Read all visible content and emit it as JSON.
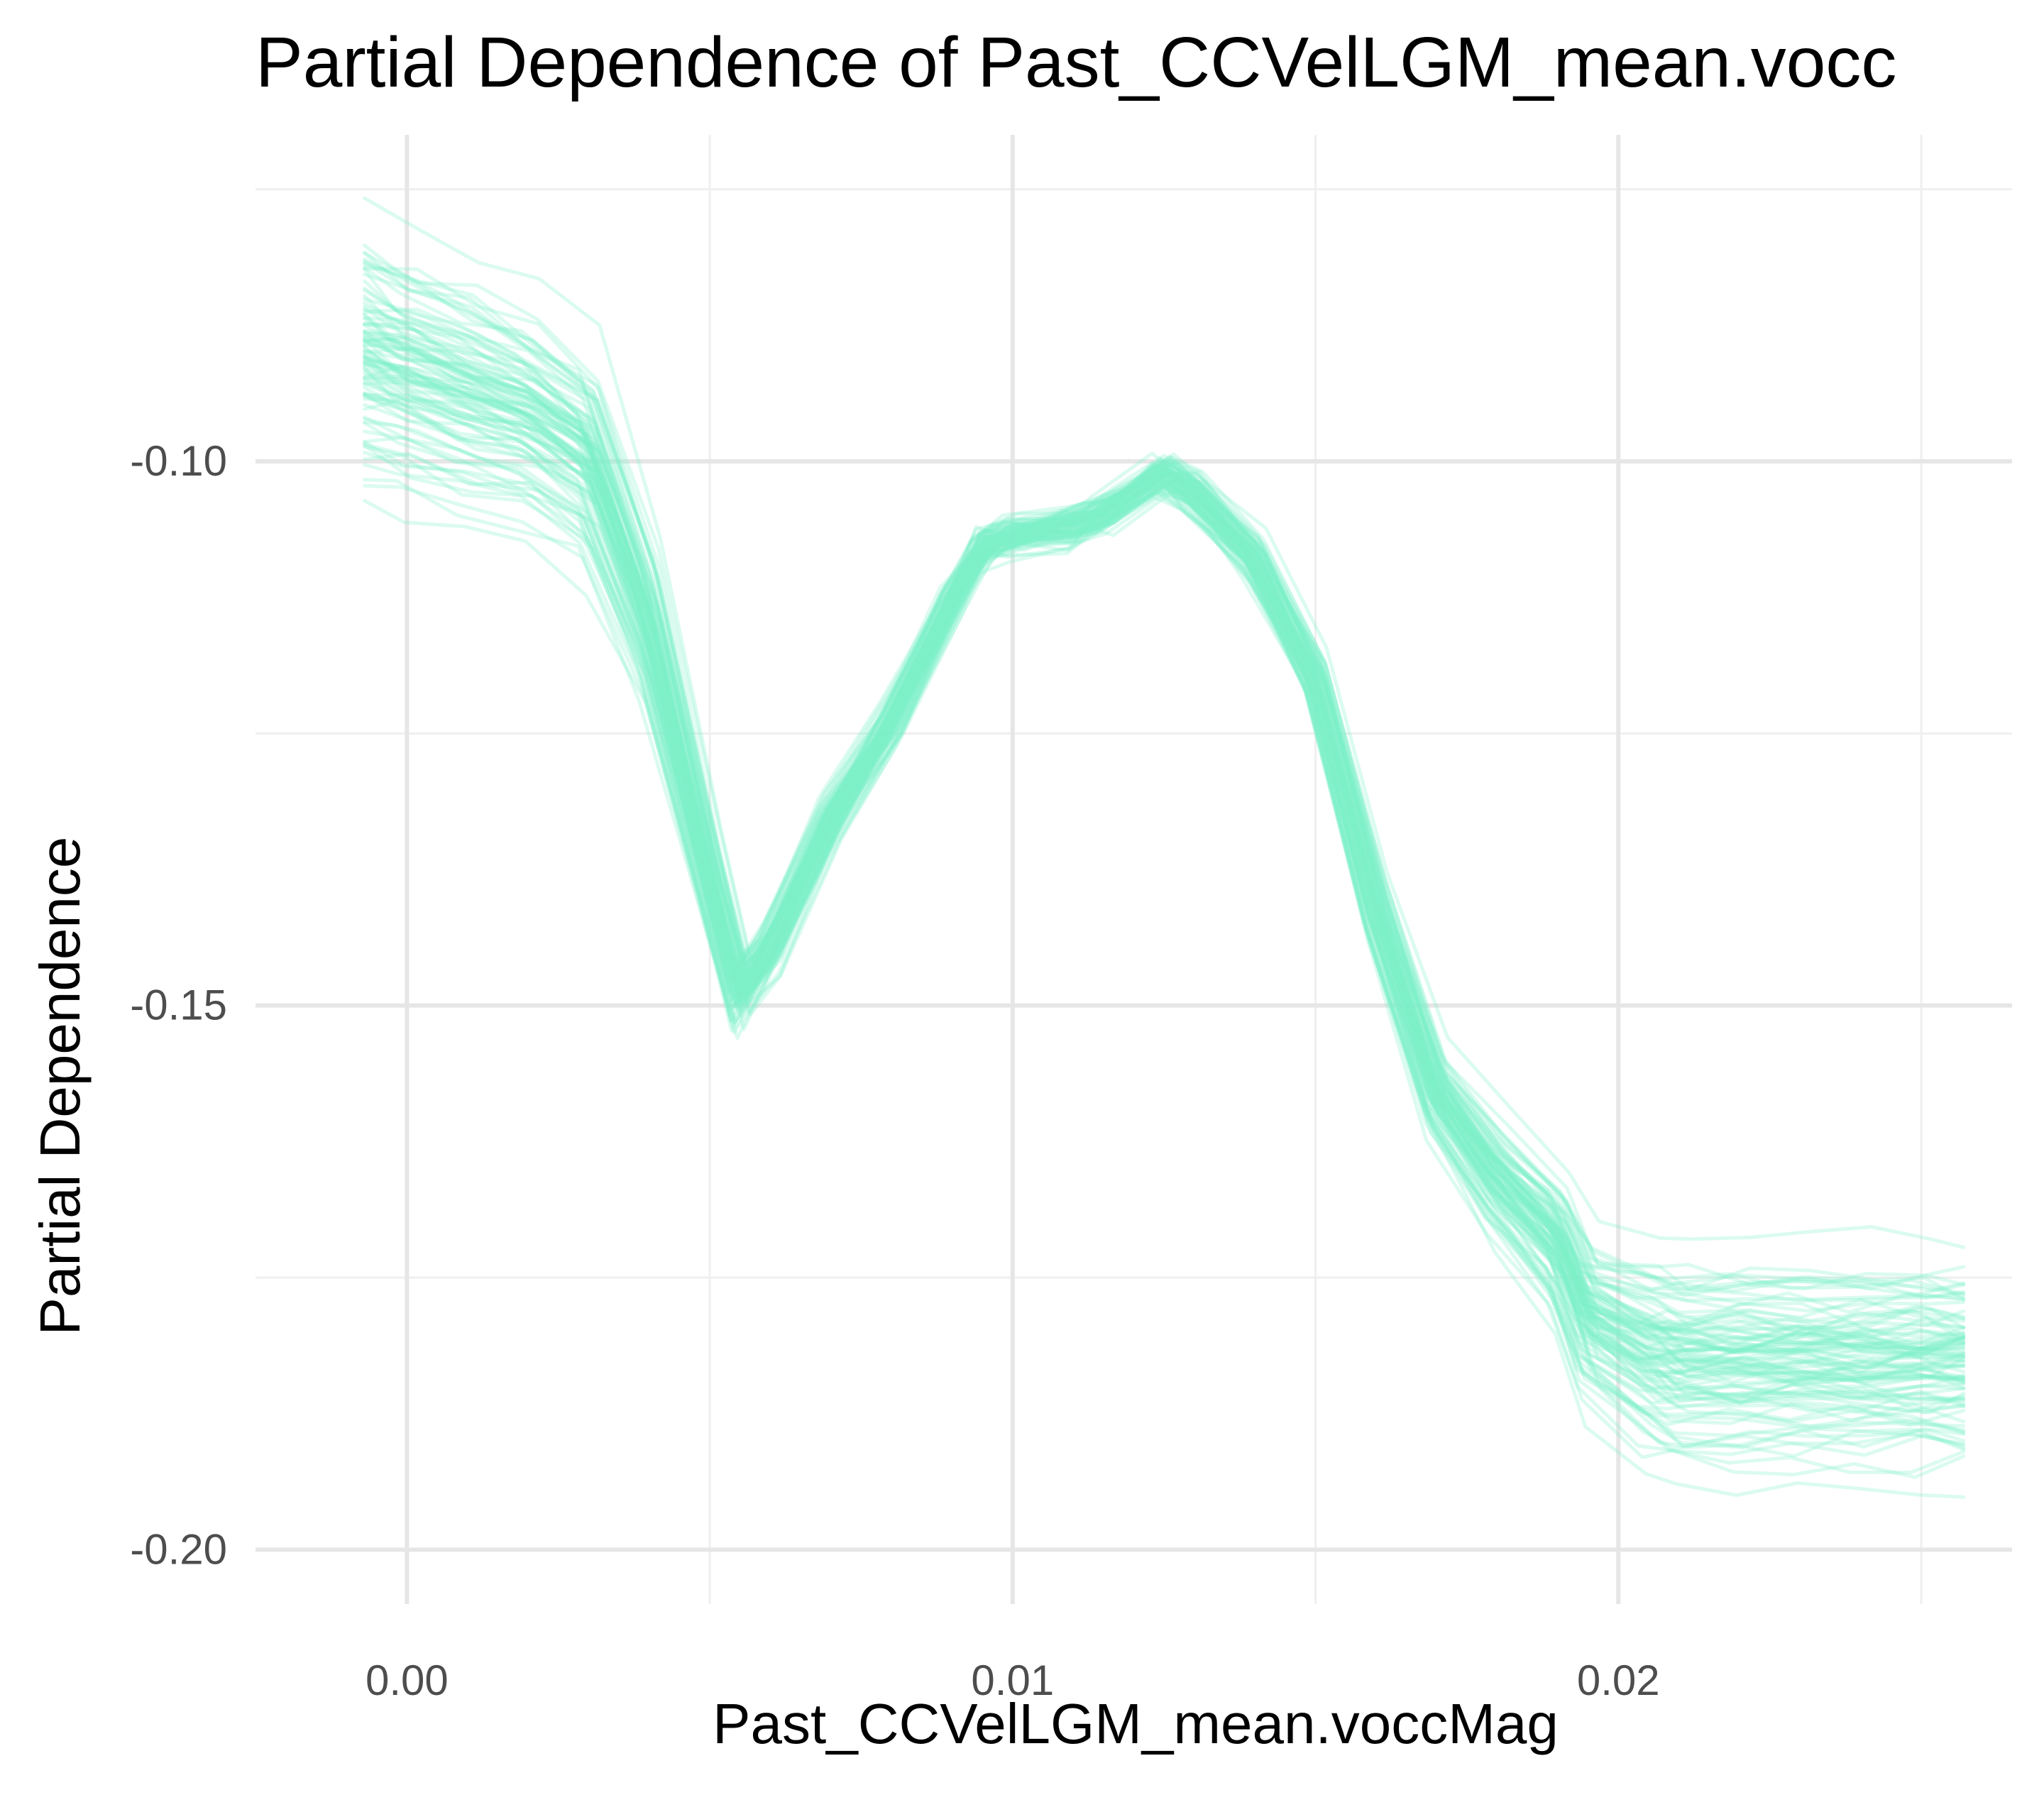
{
  "chart_data": {
    "type": "line",
    "title": "Partial Dependence of Past_CCVelLGM_mean.vocc",
    "xlabel": "Past_CCVelLGM_mean.voccMag",
    "ylabel": "Partial Dependence",
    "xlim": [
      -0.0025,
      0.0265
    ],
    "ylim": [
      -0.205,
      -0.07
    ],
    "x_ticks": [
      0.0,
      0.01,
      0.02
    ],
    "x_tick_labels": [
      "0.00",
      "0.01",
      "0.02"
    ],
    "x_minor_ticks": [
      0.005,
      0.015,
      0.025
    ],
    "y_ticks": [
      -0.2,
      -0.15,
      -0.1
    ],
    "y_tick_labels": [
      "-0.20",
      "-0.15",
      "-0.10"
    ],
    "y_minor_ticks": [
      -0.175,
      -0.125,
      -0.075
    ],
    "grid": true,
    "legend": "none",
    "line_color": "#7ff2c8",
    "line_opacity": 0.28,
    "center_curve": {
      "x": [
        -0.0007,
        0.0,
        0.001,
        0.002,
        0.003,
        0.004,
        0.005,
        0.0055,
        0.006,
        0.007,
        0.008,
        0.009,
        0.0095,
        0.01,
        0.011,
        0.0115,
        0.0125,
        0.013,
        0.014,
        0.015,
        0.016,
        0.017,
        0.018,
        0.019,
        0.0195,
        0.0205,
        0.021,
        0.022,
        0.023,
        0.024,
        0.025,
        0.0257
      ],
      "y": [
        -0.0905,
        -0.092,
        -0.094,
        -0.096,
        -0.1,
        -0.115,
        -0.138,
        -0.149,
        -0.145,
        -0.133,
        -0.124,
        -0.113,
        -0.108,
        -0.107,
        -0.106,
        -0.105,
        -0.101,
        -0.103,
        -0.109,
        -0.12,
        -0.141,
        -0.158,
        -0.166,
        -0.172,
        -0.179,
        -0.182,
        -0.183,
        -0.183,
        -0.183,
        -0.183,
        -0.183,
        -0.183
      ]
    },
    "ice_spread": {
      "x": [
        -0.0007,
        0.003,
        0.005,
        0.0055,
        0.007,
        0.009,
        0.011,
        0.0125,
        0.015,
        0.017,
        0.019,
        0.0205,
        0.0257
      ],
      "half_range": [
        0.017,
        0.014,
        0.006,
        0.004,
        0.003,
        0.002,
        0.002,
        0.002,
        0.002,
        0.005,
        0.009,
        0.014,
        0.014
      ]
    },
    "series_count": 100
  }
}
